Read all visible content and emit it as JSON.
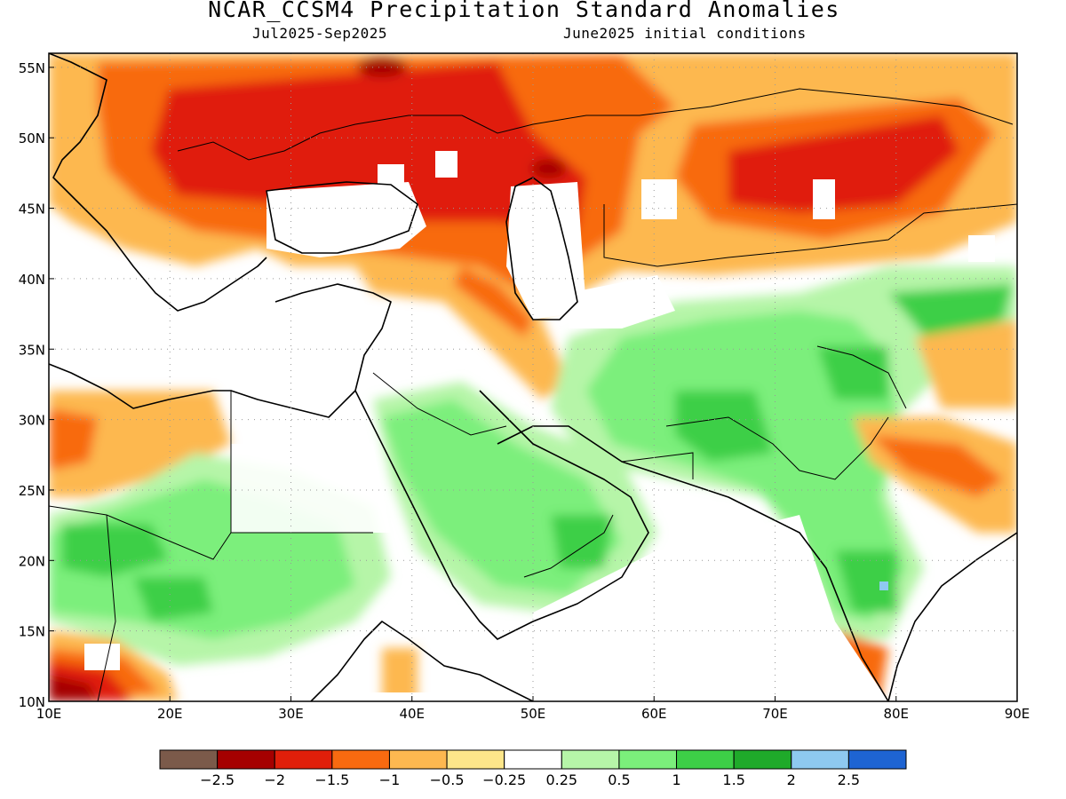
{
  "header": {
    "title": "NCAR_CCSM4 Precipitation Standard Anomalies",
    "period": "Jul2025-Sep2025",
    "init": "June2025 initial conditions"
  },
  "map": {
    "lon_range": [
      10,
      90
    ],
    "lat_range": [
      10,
      56
    ],
    "lon_ticks": [
      "10E",
      "20E",
      "30E",
      "40E",
      "50E",
      "60E",
      "70E",
      "80E",
      "90E"
    ],
    "lat_ticks": [
      "10N",
      "15N",
      "20N",
      "25N",
      "30N",
      "35N",
      "40N",
      "45N",
      "50N",
      "55N"
    ],
    "grid": "dotted"
  },
  "colorbar": {
    "colors": [
      "#7b5a4a",
      "#a50000",
      "#e01f0a",
      "#f86a10",
      "#fdb850",
      "#fde68a",
      "#ffffff",
      "#b6f5a8",
      "#7bef7b",
      "#3dcf47",
      "#1faa2a",
      "#8ec9f0",
      "#1e64d2"
    ],
    "labels": [
      "-2.5",
      "-2",
      "-1.5",
      "-1",
      "-0.5",
      "-0.25",
      "0.25",
      "0.5",
      "1",
      "1.5",
      "2",
      "2.5"
    ]
  }
}
